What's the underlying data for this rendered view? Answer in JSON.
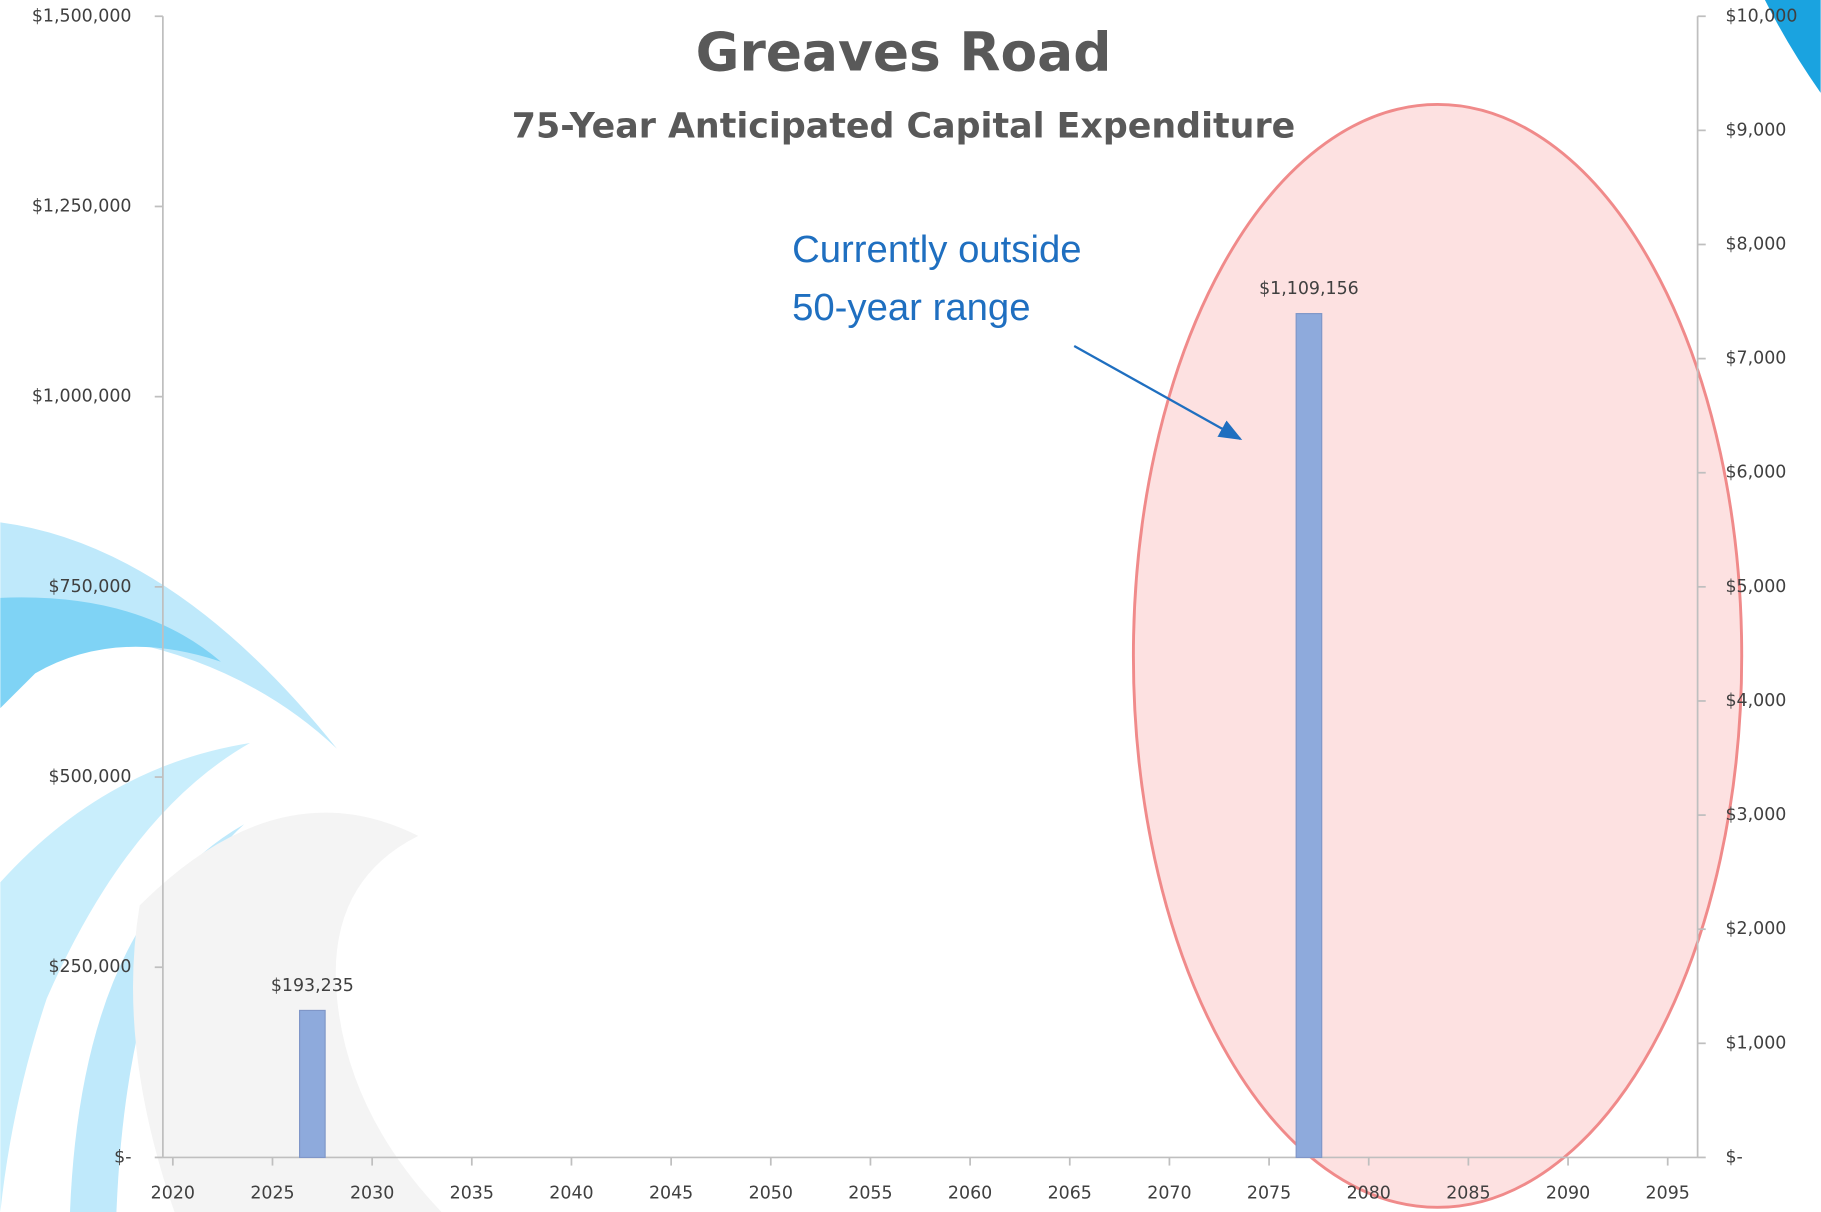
{
  "chart_data": {
    "type": "bar",
    "title": "Greaves Road",
    "subtitle": "75-Year Anticipated Capital Expenditure",
    "annotation_lines": [
      "Currently outside",
      "50-year range"
    ],
    "x": [
      2027,
      2077
    ],
    "values": [
      193235,
      1109156
    ],
    "value_labels": [
      "$193,235",
      "$1,109,156"
    ],
    "color": "#8eaadc",
    "xlim": [
      2019.5,
      2096.5
    ],
    "xticks": [
      2020,
      2025,
      2030,
      2035,
      2040,
      2045,
      2050,
      2055,
      2060,
      2065,
      2070,
      2075,
      2080,
      2085,
      2090,
      2095
    ],
    "ylim": [
      0,
      1500000
    ],
    "yticks": [
      {
        "value": 0,
        "label": "$-"
      },
      {
        "value": 250000,
        "label": "$250,000"
      },
      {
        "value": 500000,
        "label": "$500,000"
      },
      {
        "value": 750000,
        "label": "$750,000"
      },
      {
        "value": 1000000,
        "label": "$1,000,000"
      },
      {
        "value": 1250000,
        "label": "$1,250,000"
      },
      {
        "value": 1500000,
        "label": "$1,500,000"
      }
    ],
    "y2lim": [
      0,
      10000
    ],
    "y2ticks": [
      {
        "value": 0,
        "label": "$-"
      },
      {
        "value": 1000,
        "label": "$1,000"
      },
      {
        "value": 2000,
        "label": "$2,000"
      },
      {
        "value": 3000,
        "label": "$3,000"
      },
      {
        "value": 4000,
        "label": "$4,000"
      },
      {
        "value": 5000,
        "label": "$5,000"
      },
      {
        "value": 6000,
        "label": "$6,000"
      },
      {
        "value": 7000,
        "label": "$7,000"
      },
      {
        "value": 8000,
        "label": "$8,000"
      },
      {
        "value": 9000,
        "label": "$9,000"
      },
      {
        "value": 10000,
        "label": "$10,000"
      }
    ]
  }
}
